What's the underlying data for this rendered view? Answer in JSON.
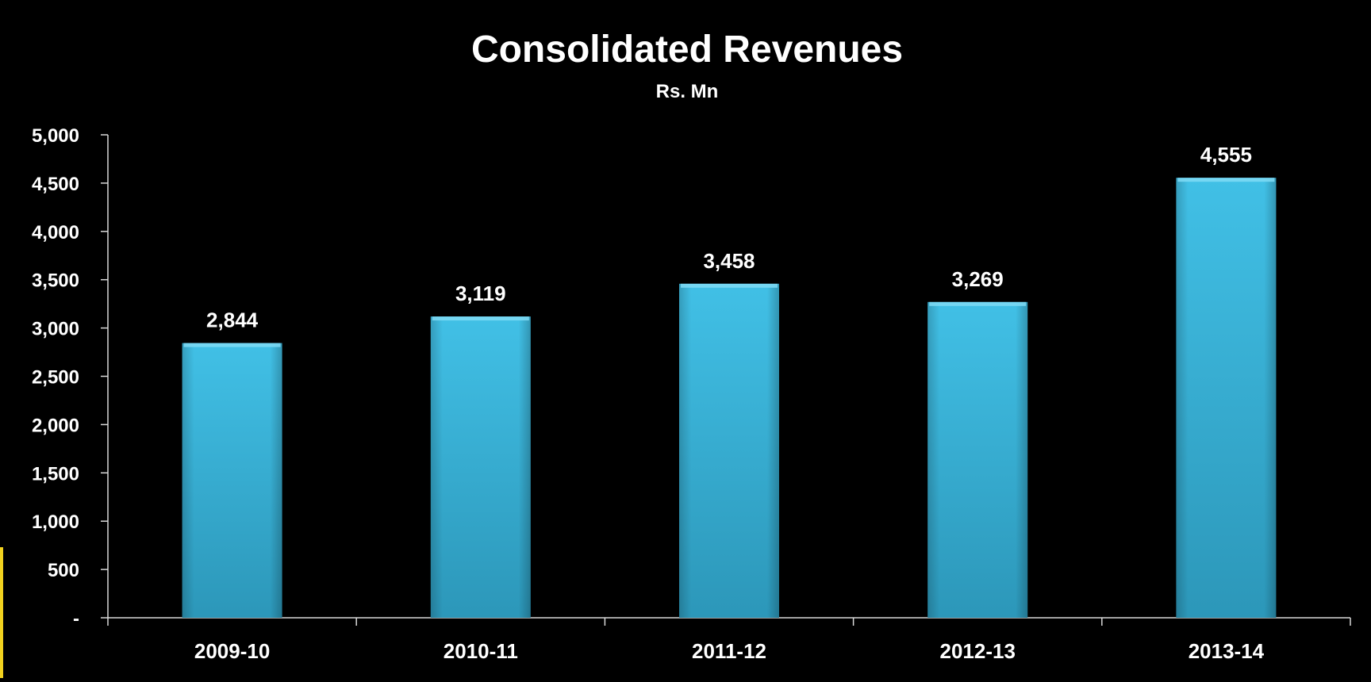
{
  "colors": {
    "background": "#000000",
    "bar": "#33b4dc",
    "text": "#ffffff",
    "accent": "#f2d21f"
  },
  "chart_data": {
    "type": "bar",
    "title": "Consolidated Revenues",
    "subtitle": "Rs. Mn",
    "categories": [
      "2009-10",
      "2010-11",
      "2011-12",
      "2012-13",
      "2013-14"
    ],
    "values": [
      2844,
      3119,
      3458,
      3269,
      4555
    ],
    "data_labels": [
      "2,844",
      "3,119",
      "3,458",
      "3,269",
      "4,555"
    ],
    "ylim": [
      0,
      5000
    ],
    "yticks": [
      0,
      500,
      1000,
      1500,
      2000,
      2500,
      3000,
      3500,
      4000,
      4500,
      5000
    ],
    "ytick_labels": [
      "-",
      "500",
      "1,000",
      "1,500",
      "2,000",
      "2,500",
      "3,000",
      "3,500",
      "4,000",
      "4,500",
      "5,000"
    ],
    "grid": false,
    "legend": "none"
  }
}
